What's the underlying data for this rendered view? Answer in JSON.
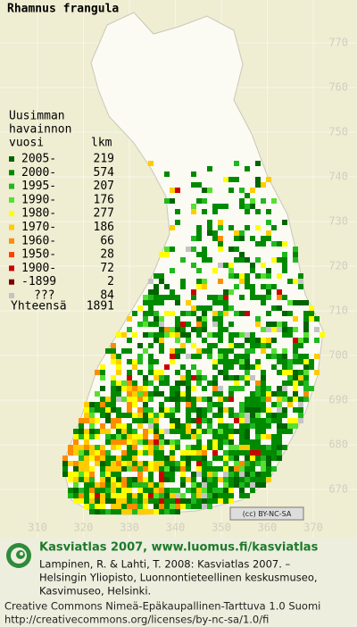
{
  "map": {
    "title": "Rhamnus frangula",
    "legend_heading": [
      "Uusimman",
      "havainnon",
      "vuosi"
    ],
    "legend_count_heading": "lkm",
    "legend": [
      {
        "label": "2005-",
        "count": 219,
        "color": "#006400"
      },
      {
        "label": "2000-",
        "count": 574,
        "color": "#008a00"
      },
      {
        "label": "1995-",
        "count": 207,
        "color": "#1fb81f"
      },
      {
        "label": "1990-",
        "count": 176,
        "color": "#55e030"
      },
      {
        "label": "1980-",
        "count": 277,
        "color": "#ffff00"
      },
      {
        "label": "1970-",
        "count": 186,
        "color": "#ffcc00"
      },
      {
        "label": "1960-",
        "count": 66,
        "color": "#ff8c00"
      },
      {
        "label": "1950-",
        "count": 28,
        "color": "#ff4000"
      },
      {
        "label": "1900-",
        "count": 72,
        "color": "#cc0000"
      },
      {
        "label": "-1899",
        "count": 2,
        "color": "#7a0000"
      },
      {
        "label": "???",
        "count": 84,
        "color": "#c4c4c4"
      }
    ],
    "total_label": "Yhteensä",
    "total": 1891,
    "y_labels": [
      770,
      760,
      750,
      740,
      730,
      720,
      710,
      700,
      690,
      680,
      670
    ],
    "x_labels": [
      310,
      320,
      330,
      340,
      350,
      360,
      370
    ],
    "license_badge": "(cc) BY-NC-SA"
  },
  "footer": {
    "heading": "Kasviatlas 2007, www.luomus.fi/kasviatlas",
    "citation": [
      "Lampinen, R. & Lahti, T. 2008: Kasviatlas 2007. –",
      "Helsingin Yliopisto, Luonnontieteellinen keskusmuseo,",
      "Kasvimuseo, Helsinki."
    ],
    "license": [
      "Creative Commons Nimeä-Epäkaupallinen-Tarttuva 1.0 Suomi",
      "http://creativecommons.org/licenses/by-nc-sa/1.0/fi"
    ]
  }
}
